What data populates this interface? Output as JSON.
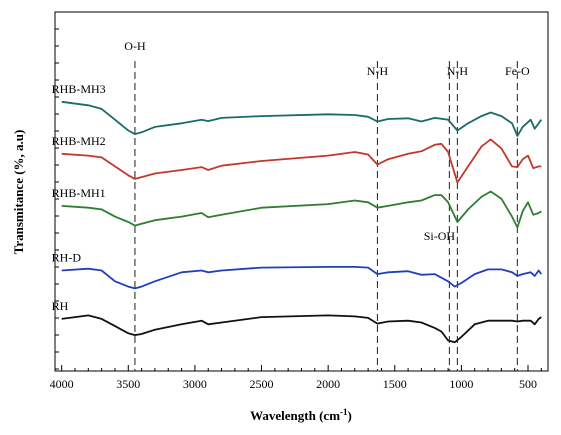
{
  "chart_data": {
    "type": "line",
    "xlabel": "Wavelength (cm",
    "xlabel_sup": "-1",
    "xlabel_close": ")",
    "ylabel": "Transmitance (%, a.u)",
    "xlim": [
      4050,
      350
    ],
    "x_reversed": true,
    "y_ticks_labeled": false,
    "grid": false,
    "x_ticks": [
      {
        "value": 4000,
        "label": "4000"
      },
      {
        "value": 3500,
        "label": "3500"
      },
      {
        "value": 3000,
        "label": "3000"
      },
      {
        "value": 2500,
        "label": "2500"
      },
      {
        "value": 2000,
        "label": "2000"
      },
      {
        "value": 1500,
        "label": "1500"
      },
      {
        "value": 1000,
        "label": "1000"
      },
      {
        "value": 500,
        "label": "500"
      }
    ],
    "annotations": [
      {
        "label": "O-H",
        "x": 3450
      },
      {
        "label": "N-H",
        "x": 1630
      },
      {
        "label": "N-H",
        "x": 1030
      },
      {
        "label": "Si-OH",
        "x": 1090
      },
      {
        "label": "Fe-O",
        "x": 580
      }
    ],
    "series": [
      {
        "name": "RHB-MH3",
        "color": "#1a6b6b",
        "points": [
          [
            4000,
            75
          ],
          [
            3800,
            74
          ],
          [
            3700,
            73
          ],
          [
            3600,
            70
          ],
          [
            3500,
            67
          ],
          [
            3450,
            66
          ],
          [
            3400,
            66.5
          ],
          [
            3300,
            68
          ],
          [
            3100,
            69
          ],
          [
            2950,
            70
          ],
          [
            2900,
            69.6
          ],
          [
            2800,
            70.5
          ],
          [
            2500,
            71
          ],
          [
            2000,
            71.5
          ],
          [
            1800,
            71.3
          ],
          [
            1700,
            70.8
          ],
          [
            1630,
            69.5
          ],
          [
            1550,
            70.2
          ],
          [
            1400,
            70.4
          ],
          [
            1300,
            69.5
          ],
          [
            1200,
            70.5
          ],
          [
            1100,
            70
          ],
          [
            1030,
            67
          ],
          [
            950,
            69
          ],
          [
            850,
            71
          ],
          [
            780,
            72
          ],
          [
            700,
            71
          ],
          [
            620,
            69
          ],
          [
            580,
            65.5
          ],
          [
            540,
            68
          ],
          [
            480,
            70
          ],
          [
            450,
            67.5
          ],
          [
            420,
            69
          ],
          [
            400,
            70
          ]
        ]
      },
      {
        "name": "RHB-MH2",
        "color": "#c0392b",
        "points": [
          [
            4000,
            60.5
          ],
          [
            3800,
            60
          ],
          [
            3700,
            59.5
          ],
          [
            3600,
            57
          ],
          [
            3500,
            54.5
          ],
          [
            3450,
            53.5
          ],
          [
            3400,
            54
          ],
          [
            3300,
            55
          ],
          [
            3100,
            56
          ],
          [
            2950,
            56.8
          ],
          [
            2900,
            56
          ],
          [
            2800,
            57.2
          ],
          [
            2500,
            58.5
          ],
          [
            2000,
            60
          ],
          [
            1800,
            61
          ],
          [
            1700,
            60.3
          ],
          [
            1630,
            57.5
          ],
          [
            1550,
            59
          ],
          [
            1400,
            60.5
          ],
          [
            1300,
            61.2
          ],
          [
            1200,
            63
          ],
          [
            1150,
            63.3
          ],
          [
            1100,
            61
          ],
          [
            1030,
            52.5
          ],
          [
            950,
            57
          ],
          [
            850,
            62.5
          ],
          [
            780,
            64.5
          ],
          [
            700,
            62
          ],
          [
            620,
            57
          ],
          [
            580,
            56.8
          ],
          [
            540,
            59
          ],
          [
            500,
            60
          ],
          [
            460,
            56.5
          ],
          [
            420,
            57
          ],
          [
            400,
            57
          ]
        ]
      },
      {
        "name": "RHB-MH1",
        "color": "#2e7d32",
        "points": [
          [
            4000,
            46
          ],
          [
            3800,
            45.5
          ],
          [
            3700,
            45
          ],
          [
            3600,
            43
          ],
          [
            3500,
            41.5
          ],
          [
            3450,
            40.5
          ],
          [
            3400,
            41
          ],
          [
            3300,
            42
          ],
          [
            3100,
            43
          ],
          [
            2950,
            44
          ],
          [
            2900,
            42.8
          ],
          [
            2800,
            43.5
          ],
          [
            2500,
            45.5
          ],
          [
            2000,
            46.5
          ],
          [
            1800,
            47.5
          ],
          [
            1700,
            47
          ],
          [
            1630,
            45.5
          ],
          [
            1550,
            46
          ],
          [
            1400,
            47
          ],
          [
            1300,
            47.5
          ],
          [
            1200,
            49
          ],
          [
            1150,
            49
          ],
          [
            1100,
            47
          ],
          [
            1030,
            41.5
          ],
          [
            950,
            45
          ],
          [
            850,
            48.5
          ],
          [
            780,
            50
          ],
          [
            700,
            48
          ],
          [
            620,
            43
          ],
          [
            580,
            40
          ],
          [
            540,
            44.5
          ],
          [
            500,
            47
          ],
          [
            460,
            43.5
          ],
          [
            420,
            44
          ],
          [
            400,
            44.5
          ]
        ]
      },
      {
        "name": "RH-D",
        "color": "#1f3fbf",
        "points": [
          [
            4000,
            28
          ],
          [
            3800,
            28.5
          ],
          [
            3700,
            28
          ],
          [
            3600,
            25
          ],
          [
            3500,
            23.5
          ],
          [
            3450,
            23
          ],
          [
            3400,
            23.5
          ],
          [
            3300,
            25
          ],
          [
            3100,
            27.5
          ],
          [
            2950,
            28
          ],
          [
            2900,
            27.5
          ],
          [
            2800,
            28
          ],
          [
            2500,
            28.8
          ],
          [
            2000,
            29
          ],
          [
            1800,
            29
          ],
          [
            1700,
            28.8
          ],
          [
            1630,
            27
          ],
          [
            1550,
            27.5
          ],
          [
            1400,
            27.8
          ],
          [
            1300,
            26.8
          ],
          [
            1200,
            27
          ],
          [
            1100,
            25
          ],
          [
            1050,
            23.5
          ],
          [
            1000,
            24.5
          ],
          [
            900,
            27
          ],
          [
            800,
            28.3
          ],
          [
            700,
            28.3
          ],
          [
            620,
            27.5
          ],
          [
            580,
            26.5
          ],
          [
            540,
            27
          ],
          [
            480,
            27.5
          ],
          [
            450,
            26.5
          ],
          [
            420,
            28
          ],
          [
            400,
            27
          ]
        ]
      },
      {
        "name": "RH",
        "color": "#111111",
        "points": [
          [
            4000,
            14.5
          ],
          [
            3900,
            15
          ],
          [
            3800,
            15.5
          ],
          [
            3700,
            14.5
          ],
          [
            3600,
            12.5
          ],
          [
            3500,
            10.5
          ],
          [
            3450,
            10
          ],
          [
            3400,
            10.3
          ],
          [
            3300,
            11.5
          ],
          [
            3100,
            13
          ],
          [
            2950,
            14
          ],
          [
            2900,
            13
          ],
          [
            2800,
            13.5
          ],
          [
            2500,
            15
          ],
          [
            2000,
            15.5
          ],
          [
            1800,
            15.2
          ],
          [
            1700,
            14.8
          ],
          [
            1630,
            13.2
          ],
          [
            1550,
            13.8
          ],
          [
            1400,
            14
          ],
          [
            1300,
            13.5
          ],
          [
            1200,
            12
          ],
          [
            1150,
            11
          ],
          [
            1100,
            8.5
          ],
          [
            1050,
            8
          ],
          [
            1000,
            9.5
          ],
          [
            900,
            13
          ],
          [
            800,
            14
          ],
          [
            700,
            14
          ],
          [
            620,
            14
          ],
          [
            580,
            13.8
          ],
          [
            540,
            14
          ],
          [
            480,
            14
          ],
          [
            450,
            13
          ],
          [
            420,
            14.5
          ],
          [
            400,
            15
          ]
        ]
      }
    ]
  }
}
